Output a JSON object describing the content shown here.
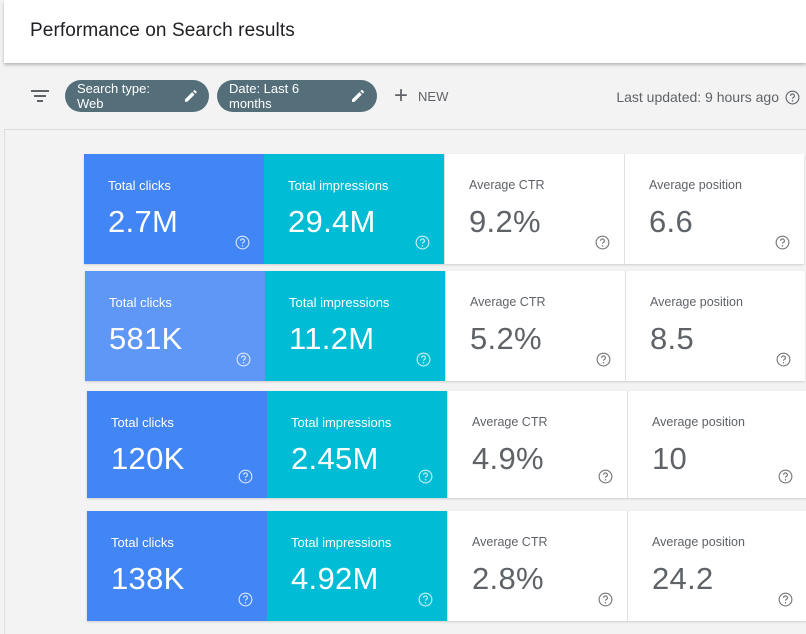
{
  "header": {
    "title": "Performance on Search results"
  },
  "filters": {
    "chips": [
      {
        "label": "Search type: Web"
      },
      {
        "label": "Date: Last 6 months"
      }
    ],
    "new_label": "NEW",
    "last_updated": "Last updated: 9 hours ago"
  },
  "rows": [
    {
      "clicks": {
        "label": "Total clicks",
        "value": "2.7M"
      },
      "impressions": {
        "label": "Total impressions",
        "value": "29.4M"
      },
      "ctr": {
        "label": "Average CTR",
        "value": "9.2%"
      },
      "position": {
        "label": "Average position",
        "value": "6.6"
      }
    },
    {
      "clicks": {
        "label": "Total clicks",
        "value": "581K"
      },
      "impressions": {
        "label": "Total impressions",
        "value": "11.2M"
      },
      "ctr": {
        "label": "Average CTR",
        "value": "5.2%"
      },
      "position": {
        "label": "Average position",
        "value": "8.5"
      }
    },
    {
      "clicks": {
        "label": "Total clicks",
        "value": "120K"
      },
      "impressions": {
        "label": "Total impressions",
        "value": "2.45M"
      },
      "ctr": {
        "label": "Average CTR",
        "value": "4.9%"
      },
      "position": {
        "label": "Average position",
        "value": "10"
      }
    },
    {
      "clicks": {
        "label": "Total clicks",
        "value": "138K"
      },
      "impressions": {
        "label": "Total impressions",
        "value": "4.92M"
      },
      "ctr": {
        "label": "Average CTR",
        "value": "2.8%"
      },
      "position": {
        "label": "Average position",
        "value": "24.2"
      }
    }
  ],
  "colors": {
    "clicks": "#4285f4",
    "clicks_light": "#5e97f6",
    "impressions": "#00bcd4",
    "chip": "#546e7a"
  },
  "icons": {
    "filter": "filter-icon",
    "edit": "pencil-icon",
    "add": "plus-icon",
    "help": "help-circle-icon"
  }
}
